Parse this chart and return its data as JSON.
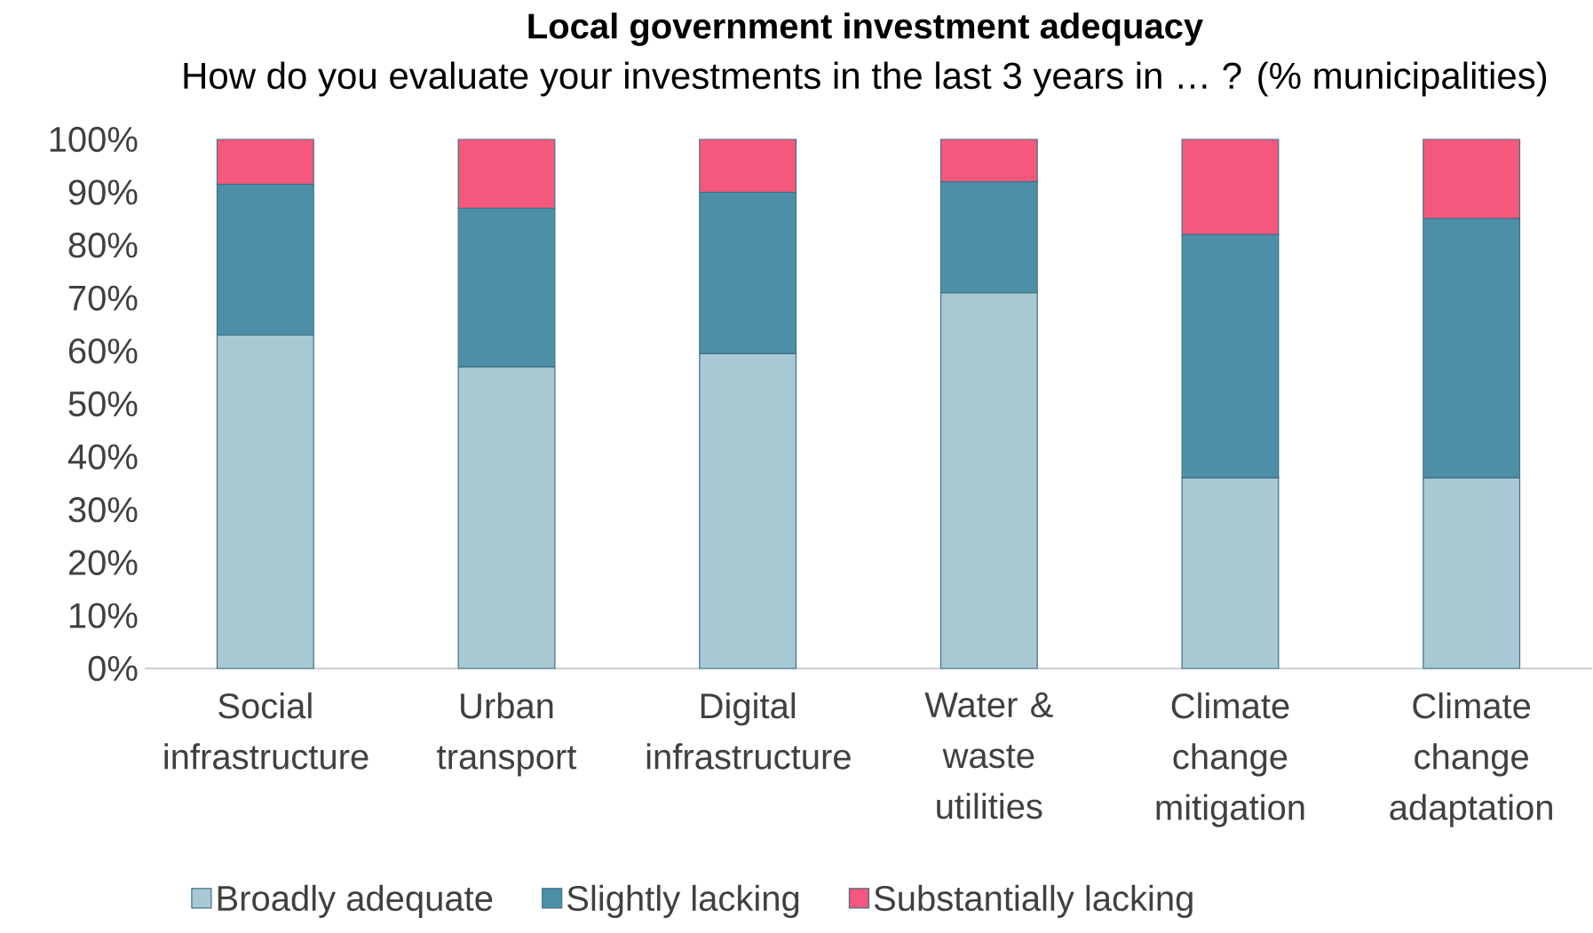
{
  "chart_data": {
    "type": "bar",
    "stacked": true,
    "title": "Local government investment adequacy",
    "subtitle": "How do you evaluate your investments in the last 3 years in … ? (% municipalities)",
    "categories": [
      "Social infrastructure",
      "Urban transport",
      "Digital infrastructure",
      "Water & waste utilities",
      "Climate change mitigation",
      "Climate change adaptation"
    ],
    "series": [
      {
        "name": "Broadly adequate",
        "color": "#a8c8d4",
        "values": [
          63,
          57,
          59.5,
          71,
          36,
          36
        ]
      },
      {
        "name": "Slightly lacking",
        "color": "#4e8fa8",
        "values": [
          28.5,
          30,
          30.5,
          21,
          46,
          49
        ]
      },
      {
        "name": "Substantially lacking",
        "color": "#f5587c",
        "values": [
          8.5,
          13,
          10,
          8,
          18,
          15
        ]
      }
    ],
    "ylim": [
      0,
      100
    ],
    "yticks": [
      {
        "value": 0,
        "label": "0%"
      },
      {
        "value": 10,
        "label": "10%"
      },
      {
        "value": 20,
        "label": "20%"
      },
      {
        "value": 30,
        "label": "30%"
      },
      {
        "value": 40,
        "label": "40%"
      },
      {
        "value": 50,
        "label": "50%"
      },
      {
        "value": 60,
        "label": "60%"
      },
      {
        "value": 70,
        "label": "70%"
      },
      {
        "value": 80,
        "label": "80%"
      },
      {
        "value": 90,
        "label": "90%"
      },
      {
        "value": 100,
        "label": "100%"
      }
    ],
    "legend": "bottom"
  }
}
